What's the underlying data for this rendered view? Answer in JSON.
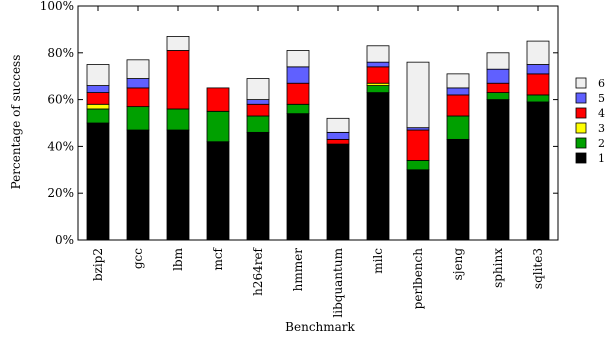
{
  "chart_data": {
    "type": "bar",
    "stacked": true,
    "title": "",
    "xlabel": "Benchmark",
    "ylabel": "Percentage of success",
    "ylim": [
      0,
      100
    ],
    "yticks": [
      "0%",
      "20%",
      "40%",
      "60%",
      "80%",
      "100%"
    ],
    "ytick_values": [
      0,
      20,
      40,
      60,
      80,
      100
    ],
    "categories": [
      "bzip2",
      "gcc",
      "lbm",
      "mcf",
      "h264ref",
      "hmmer",
      "libquantum",
      "milc",
      "perlbench",
      "sjeng",
      "sphinx",
      "sqlite3"
    ],
    "series": [
      {
        "name": "1",
        "color": "#000000",
        "values": [
          50,
          47,
          47,
          42,
          46,
          54,
          41,
          63,
          30,
          43,
          60,
          59
        ]
      },
      {
        "name": "2",
        "color": "#00a000",
        "values": [
          6,
          10,
          9,
          13,
          7,
          4,
          0,
          3,
          4,
          10,
          3,
          3
        ]
      },
      {
        "name": "3",
        "color": "#ffff00",
        "values": [
          2,
          0,
          0,
          0,
          0,
          0,
          0,
          1,
          0,
          0,
          0,
          0
        ]
      },
      {
        "name": "4",
        "color": "#ff0000",
        "values": [
          5,
          8,
          25,
          10,
          5,
          9,
          2,
          7,
          13,
          9,
          4,
          9
        ]
      },
      {
        "name": "5",
        "color": "#6060ff",
        "values": [
          3,
          4,
          0,
          0,
          2,
          7,
          3,
          2,
          1,
          3,
          6,
          4
        ]
      },
      {
        "name": "6",
        "color": "#f0f0f0",
        "values": [
          9,
          8,
          6,
          0,
          9,
          7,
          6,
          7,
          28,
          6,
          7,
          10
        ]
      }
    ],
    "legend_position": "right",
    "grid": false
  }
}
